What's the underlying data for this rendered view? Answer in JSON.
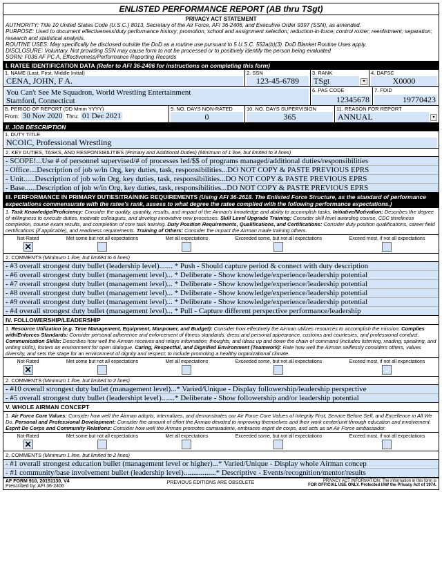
{
  "title": "ENLISTED PERFORMANCE REPORT  (AB thru TSgt)",
  "privacy": {
    "heading": "PRIVACY ACT STATEMENT",
    "authority": "AUTHORITY:  Title 10 United States Code (U.S.C.) 8013, Secretary of the Air Force, AFI 36-2406, and Executive Order 9397 (SSN), as amended.",
    "purpose": "PURPOSE:  Used to document effectiveness/duty performance history; promotion, school and assignment selection; reduction-in-force; control roster; reenlistment; separation; research and statistical analysis.",
    "routine": "ROUTINE USES: May specifically be disclosed outside the DoD as a routine use pursuant to 5 U.S.C. 552a(b)(3).  DoD Blanket Routine Uses apply.",
    "disclosure": "DISCLOSURE: Voluntary.  Not providing SSN may cause form to not be processed or to positively identify the person being evaluated",
    "sorn": "SORN: F036 AF PC A, Effectiveness/Performance Reporting Records"
  },
  "sectionI": {
    "header": "I.  RATEE IDENTIFICATION DATA (Refer to AFI 36-2406 for instructions on completing this form)",
    "name_lbl": "1.  NAME (Last, First, Middle Initial)",
    "name_val": "CENA, JOHN, F A.",
    "ssn_lbl": "2.  SSN",
    "ssn_val": "123-45-6789",
    "rank_lbl": "3.  RANK",
    "rank_val": "TSgt",
    "dafsc_lbl": "4.  DAFSC",
    "dafsc_val": "X0000",
    "org_lbl": "5.  ORGANIZATION, COMMAND, AND LOCATION",
    "org_val1": "You Can't See Me Squadron, World Wrestling Entertainment",
    "org_val2": "Stamford, Connecticut",
    "pas_lbl": "6.  PAS CODE",
    "pas_val": "12345678",
    "fdid_lbl": "7.  FDID",
    "fdid_val": "19770423",
    "period_lbl": "8. PERIOD OF REPORT (DD Mmm YYYY)",
    "period_from_lbl": "From:",
    "period_from": "30 Nov 2020",
    "period_thru_lbl": "Thru:",
    "period_thru": "01 Dec 2021",
    "nonrated_lbl": "9. NO. DAYS NON-RATED",
    "nonrated_val": "0",
    "supervision_lbl": "10. NO. DAYS SUPERVISION",
    "supervision_val": "365",
    "reason_lbl": "11. REASON FOR REPORT",
    "reason_val": "ANNUAL"
  },
  "sectionII": {
    "header": "II.  JOB DESCRIPTION",
    "duty_lbl": "1.  DUTY TITLE",
    "duty_val": "NCOIC, Professional Wrestling",
    "key_lbl": "2.  KEY DUTIES, TASKS, AND RESPONSIBILITIES (Primary and Additional Duties) (Minimum of 1 line, but limited to 4 lines)",
    "lines": [
      "- SCOPE!...Use # of personnel supervised/# of processes led/$$ of programs managed/additional duties/responsibilities",
      "- Office....Description of job w/in Org, key duties, task, responsibilities...DO NOT COPY & PASTE PREVIOUS EPRS",
      "- Unit......Description of job w/in Org, key duties, task, responsibilities...DO NOT COPY & PASTE PREVIOUS EPRS",
      "- Base......Description of job w/in Org, key duties, task, responsibilities...DO NOT COPY & PASTE PREVIOUS EPRS"
    ]
  },
  "sectionIII": {
    "header": "III.  PERFORMANCE IN PRIMARY DUTIES/TRAINING REQUIREMENTS (Using AFI 36-2618.  The Enlisted Force Structure, as the standard of performance expectations commensurate with the ratee's rank, assess to what degree the ratee complied with the following performance expectations.)",
    "instr": "1. Task Knowledge/Proficiency: Consider the quality, quantity, results, and impact of the Airman's knowledge and ability to accomplish tasks.  Initiative/Motivation: Describes the degree of willingness to execute duties, motivate colleagues, and develop innovative new processes.  Skill Level Upgrade Training: Consider skill level awarding course, CDC timeliness completion, course exam results, and completion of core task training.  Duty Position Requirements, Qualifications, and Certifications: Consider duty position qualifications, career field certifications (if applicable), and readiness requirements.  Training of Others: Consider the impact the Airman made training others.",
    "ratings": [
      "Not-Rated",
      "Met some but not all expectations",
      "Met all expectations",
      "Exceeded some, but not all expectations",
      "Exceed most, if not all expectations"
    ],
    "checked": 0,
    "comments_lbl": "2.  COMMENTS (Minimum 1 line, but limited to 6 lines)",
    "lines": [
      "- #3 overall strongest duty bullet (leadership level)....... * Push - Should capture period & connect with duty description",
      "- #6 overall strongest duty bullet (management level)... * Deliberate - Show knowledge/experience/leadership potential",
      "- #7 overall strongest duty bullet (management level)... * Deliberate - Show knowledge/experience/leadership potential",
      "- #8 overall strongest duty bullet (management level)... * Deliberate - Show knowledge/experience/leadership potential",
      "- #9 overall strongest duty bullet (management level)... * Deliberate - Show knowledge/experience/leadership potential",
      "- #4 overall strongest duty bullet (management level)... * Pull - Capture different perspective performance/leadership"
    ]
  },
  "sectionIV": {
    "header": "IV.  FOLLOWERSHIP/LEADERSHIP",
    "instr": "1.  Resource Utilization (e.g. Time Management, Equipment, Manpower, and Budget): Consider how effectively the Airman utilizes resources to accomplish the mission.  Complies with/Enforces Standards: Consider personal adherence and enforcement of fitness standards, dress and personal appearance, customs and courtesies, and professional conduct.  Communication Skills: Describes how well the Airman receives and relays information, thoughts, and ideas up and down the chain of command (includes listening, reading, speaking, and writing skills); fosters an environment for open dialogue.  Caring, Respectful, and Dignified Environment (Teamwork): Rate how well the Airman selflessly considers others, values diversity, and sets the stage for an environment of dignity and respect; to include promoting a healthy organizational climate.",
    "checked": 0,
    "comments_lbl": "2.  COMMENTS (Minimum 1 line, but limited to 2 lines)",
    "lines": [
      "- #10 overall strongest duty bullet (management level)...* Varied/Unique - Display followership/leadership perspective",
      "- #5 overall strongest duty bullet (leadershipt level).......* Deliberate - Show followership and/or leadership potential"
    ]
  },
  "sectionV": {
    "header": "V.  WHOLE AIRMAN CONCEPT",
    "instr": "1. Air Force Core Values:  Consider how well the Airman adopts, internalizes, and demonstrates our Air Force Core Values of Integrity First, Service Before Self, and Excellence in All We Do.  Personal and Professional Development: Consider the amount of effort the Airman devoted to improving themselves and their work center/unit through education and involvement.  Esprit De Corps and Community Relations:  Consider how well the Airman promotes camaraderie, embraces esprit de corps, and acts as an Air Force ambassador.",
    "checked": 0,
    "comments_lbl": "2.  COMMENTS (Minimum 1 line, but limited to 2 lines)",
    "lines": [
      "- #1 overall strongest education bullet (management level or higher)...* Varied/Unique - Display whole Airman concep",
      "- #1 community/base involvement bullet (leadership level).................* Descriptive - Events/recognition/mentor/results"
    ]
  },
  "footer": {
    "form": "AF FORM 910, 20151130, V4",
    "prescribed": "Prescribed by: AFI 36-2406",
    "obsolete": "PREVIOUS EDITIONS ARE OBSOLETE",
    "privacy1": "PRIVACY ACT INFORMATION:  The information in this form is",
    "privacy2": "FOR OFFICIAL USE ONLY.  Protected IAW the Privacy Act of 1974."
  }
}
